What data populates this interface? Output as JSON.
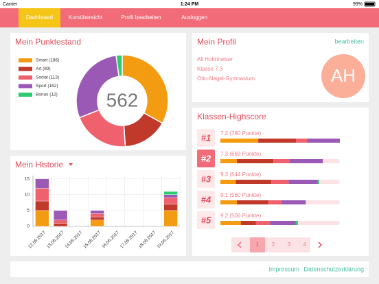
{
  "status_bar": {
    "carrier": "Carrier",
    "time": "1:24 PM",
    "battery": "99%"
  },
  "nav": {
    "items": [
      "Dashboard",
      "Kursübersicht",
      "Profil bearbeiten",
      "Ausloggen"
    ],
    "active": 0
  },
  "chart_data": [
    {
      "type": "donut",
      "title": "Mein Punktestand",
      "total": 562,
      "categories": [
        "Smart (186)",
        "Art (89)",
        "Social (113)",
        "Sport (162)",
        "Bonus (12)"
      ],
      "values": [
        186,
        89,
        113,
        162,
        12
      ],
      "colors": [
        "#f39c12",
        "#c0392b",
        "#f0616e",
        "#9b59b6",
        "#2ecc71"
      ]
    },
    {
      "type": "stacked_bar",
      "title": "Mein Historie",
      "categories": [
        "12.05.2017",
        "13.05.2017",
        "14.05.2017",
        "15.05.2017",
        "16.05.2017",
        "17.05.2017",
        "18.05.2017",
        "19.05.2017"
      ],
      "series": [
        {
          "color": "#f39c12",
          "values": [
            5,
            0,
            0,
            2,
            0,
            0,
            0,
            5
          ]
        },
        {
          "color": "#c0392b",
          "values": [
            3,
            1,
            0,
            1,
            0,
            0,
            0,
            2
          ]
        },
        {
          "color": "#f0616e",
          "values": [
            4,
            1,
            0,
            1,
            0,
            0,
            0,
            2
          ]
        },
        {
          "color": "#9b59b6",
          "values": [
            3,
            3,
            0,
            1,
            0,
            0,
            0,
            1
          ]
        },
        {
          "color": "#2ecc71",
          "values": [
            0,
            0,
            0,
            0,
            0,
            0,
            0,
            1
          ]
        }
      ],
      "ylim": [
        0,
        16
      ],
      "yticks": [
        0,
        5,
        10,
        15
      ],
      "grid": true
    },
    {
      "type": "stacked_hbar",
      "title": "Klassen-Highscore",
      "ranks": [
        "#1",
        "#2",
        "#3",
        "#4",
        "#5"
      ],
      "highlighted_rank": 1,
      "categories": [
        "7.2 (780 Punkte)",
        "7.3 (669 Punkte)",
        "9.3 (644 Punkte)",
        "9.1 (560 Punkte)",
        "9.2 (506 Punkte)"
      ],
      "series": [
        {
          "color": "#f39c12",
          "values": [
            247,
            108,
            101,
            108,
            134
          ]
        },
        {
          "color": "#c0392b",
          "values": [
            246,
            238,
            232,
            205,
            97
          ]
        },
        {
          "color": "#f0616e",
          "values": [
            72,
            104,
            112,
            86,
            93
          ]
        },
        {
          "color": "#9b59b6",
          "values": [
            215,
            219,
            191,
            153,
            167
          ]
        },
        {
          "color": "#2ecc71",
          "values": [
            0,
            0,
            8,
            8,
            15
          ]
        }
      ],
      "xlim": [
        0,
        780
      ]
    }
  ],
  "profile": {
    "title": "Mein Profil",
    "edit": "bearbeiten",
    "name": "Ali Hohnheiser",
    "class": "Klasse 7.3",
    "school": "Otto-Nagel-Gymnasium",
    "initials": "AH"
  },
  "pagination": {
    "pages": [
      1,
      2,
      3,
      4
    ],
    "active": 0
  },
  "footer": {
    "links": [
      "Impressum",
      "Datenschutzerklärung"
    ]
  }
}
